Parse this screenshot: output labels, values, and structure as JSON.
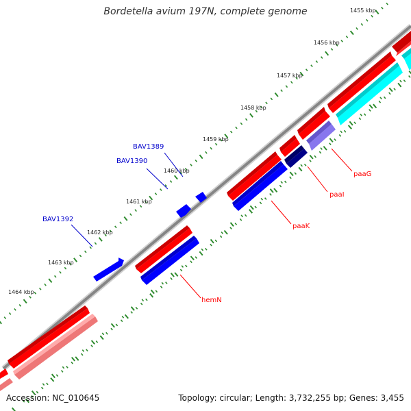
{
  "title": "Bordetella avium 197N, complete genome",
  "footer": {
    "accession": "Accession: NC_010645",
    "stats": "Topology: circular; Length: 3,732,255 bp; Genes: 3,455"
  },
  "colors": {
    "backbone": "#858585",
    "ticks": "#2e8b2e",
    "gene_red": "#ff0000",
    "gene_blue": "#0000ff",
    "gene_cyan": "#00ffff",
    "gene_pink": "#ee7777",
    "gene_violet": "#8877ee",
    "gene_navy": "#000088",
    "label_red": "#ff0000",
    "label_blue": "#0000cc"
  },
  "tick_labels": [
    "1455 kbp",
    "1456 kbp",
    "1457 kbp",
    "1458 kbp",
    "1459 kbp",
    "1460 kbp",
    "1461 kbp",
    "1462 kbp",
    "1463 kbp",
    "1464 kbp"
  ],
  "gene_labels": [
    "paaG",
    "paaI",
    "paaK",
    "hemN",
    "BAV1389",
    "BAV1390",
    "BAV1392"
  ]
}
